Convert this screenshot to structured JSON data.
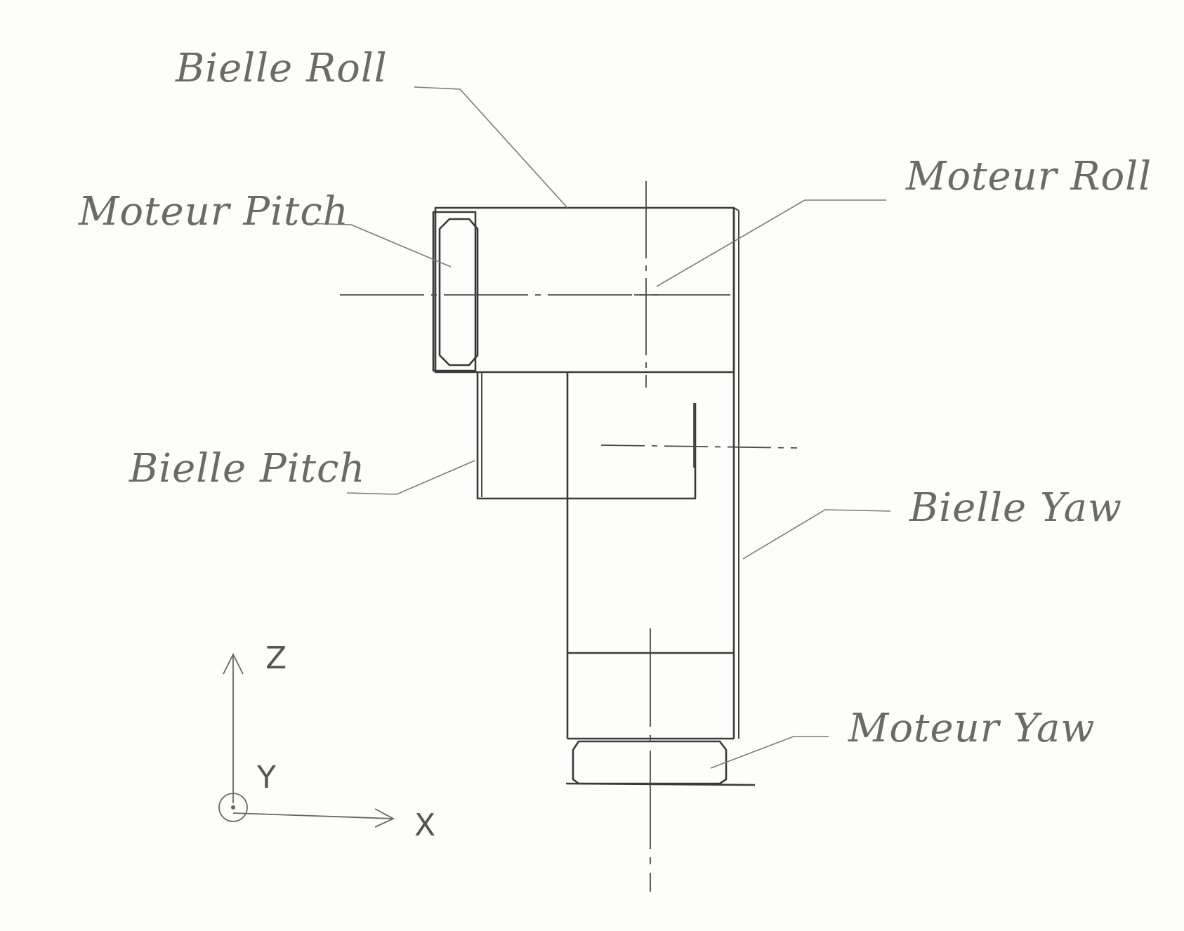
{
  "labels": {
    "bielle_roll": "Bielle Roll",
    "moteur_pitch": "Moteur Pitch",
    "moteur_roll": "Moteur Roll",
    "bielle_pitch": "Bielle Pitch",
    "bielle_yaw": "Bielle Yaw",
    "moteur_yaw": "Moteur Yaw"
  },
  "frame": {
    "z": "Z",
    "y": "Y",
    "x": "X"
  },
  "colors": {
    "stroke": "#3a3a3a",
    "label": "#6a6a6a",
    "background": "#fdfdfc"
  }
}
